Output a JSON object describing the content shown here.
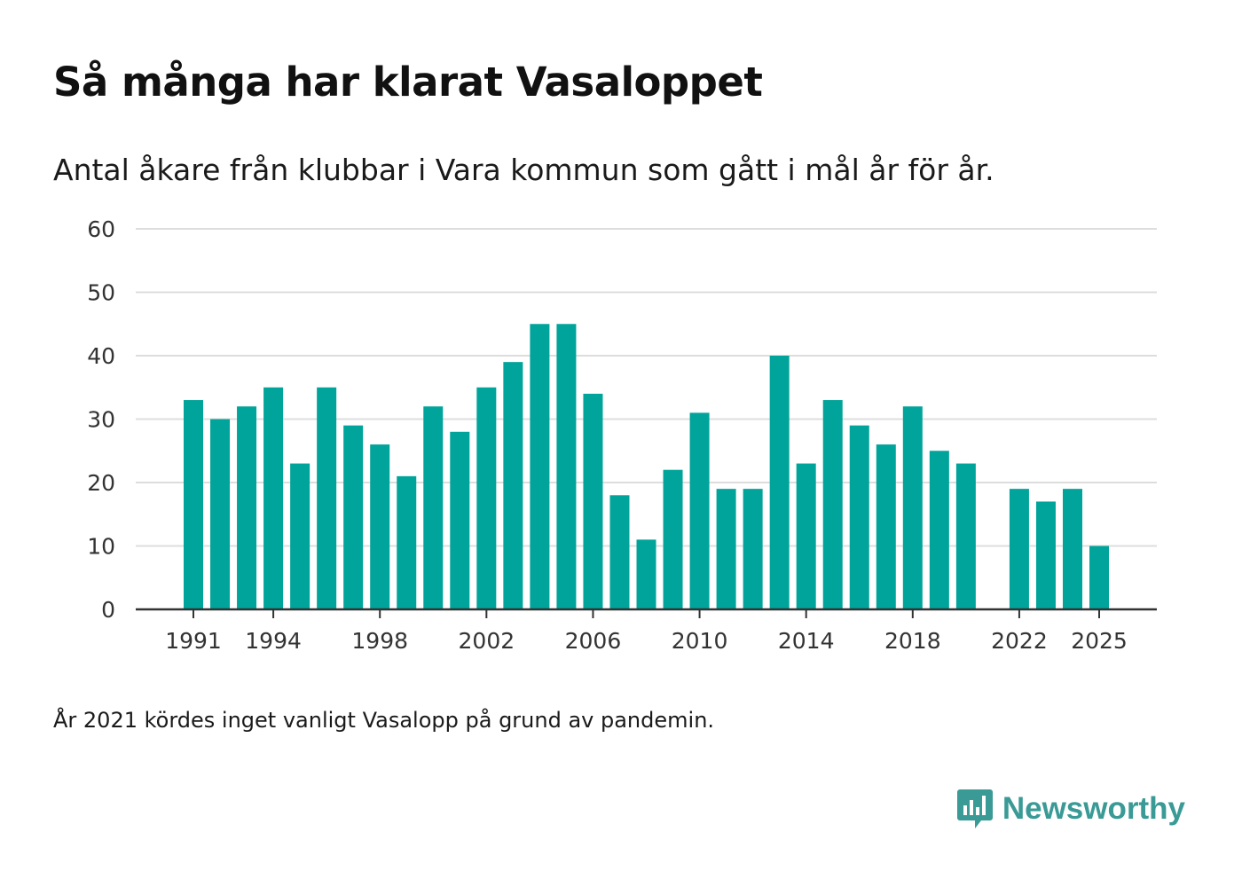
{
  "title": "Så många har klarat Vasaloppet",
  "subtitle": "Antal åkare från klubbar i Vara kommun som gått i mål år för år.",
  "footnote": "År 2021 kördes inget vanligt Vasalopp på grund av pandemin.",
  "brand": {
    "name": "Newsworthy",
    "icon": "newsworthy-logo-icon",
    "color": "#3a9a96"
  },
  "chart_data": {
    "type": "bar",
    "title": "Så många har klarat Vasaloppet",
    "xlabel": "",
    "ylabel": "",
    "ylim": [
      0,
      60
    ],
    "yticks": [
      0,
      10,
      20,
      30,
      40,
      50,
      60
    ],
    "xticks": [
      1991,
      1994,
      1998,
      2002,
      2006,
      2010,
      2014,
      2018,
      2022,
      2025
    ],
    "grid": true,
    "bar_color": "#00a49a",
    "categories": [
      1991,
      1992,
      1993,
      1994,
      1995,
      1996,
      1997,
      1998,
      1999,
      2000,
      2001,
      2002,
      2003,
      2004,
      2005,
      2006,
      2007,
      2008,
      2009,
      2010,
      2011,
      2012,
      2013,
      2014,
      2015,
      2016,
      2017,
      2018,
      2019,
      2020,
      2021,
      2022,
      2023,
      2024,
      2025
    ],
    "values": [
      33,
      30,
      32,
      35,
      23,
      35,
      29,
      26,
      21,
      32,
      28,
      35,
      39,
      45,
      45,
      34,
      18,
      11,
      22,
      31,
      19,
      19,
      40,
      23,
      33,
      29,
      26,
      32,
      25,
      23,
      null,
      19,
      17,
      19,
      10
    ]
  }
}
